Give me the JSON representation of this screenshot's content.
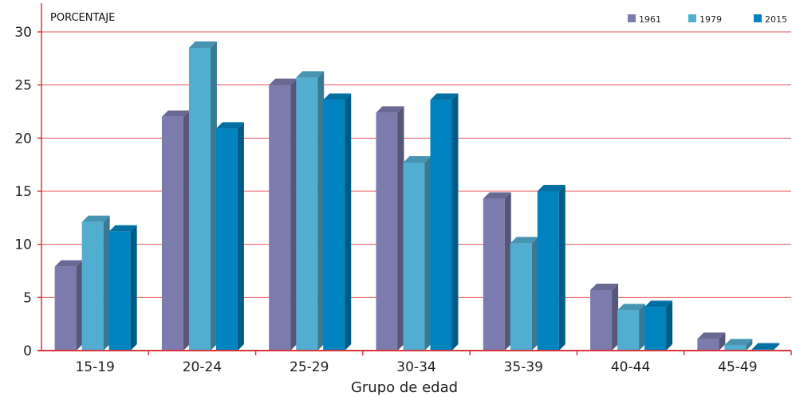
{
  "chart_data": {
    "type": "bar",
    "title": "",
    "ylabel": "PORCENTAJE",
    "xlabel": "Grupo de edad",
    "ylim": [
      0,
      30
    ],
    "yticks": [
      0,
      5,
      10,
      15,
      20,
      25,
      30
    ],
    "grid": true,
    "legend_position": "top-right",
    "categories": [
      "15-19",
      "20-24",
      "25-29",
      "30-34",
      "35-39",
      "40-44",
      "45-49"
    ],
    "series": [
      {
        "name": "1961",
        "color": "#7b7bad",
        "values": [
          7.9,
          22.0,
          25.0,
          22.4,
          14.3,
          5.7,
          1.1
        ]
      },
      {
        "name": "1979",
        "color": "#52aed1",
        "values": [
          12.1,
          28.5,
          25.7,
          17.7,
          10.1,
          3.8,
          0.5
        ]
      },
      {
        "name": "2015",
        "color": "#0084c0",
        "values": [
          11.2,
          20.9,
          23.6,
          23.6,
          15.0,
          4.1,
          0.1
        ]
      }
    ],
    "colors": {
      "grid": "#e8545a",
      "axis": "#d6363b"
    }
  }
}
